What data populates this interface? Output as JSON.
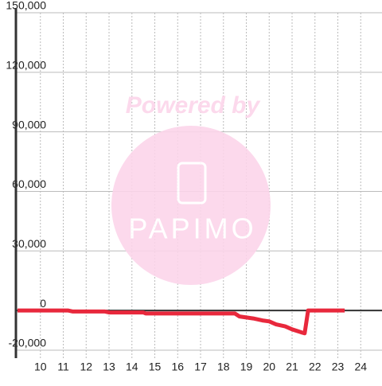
{
  "chart_data": {
    "type": "line",
    "watermark": {
      "title": "Powered by",
      "brand": "PAPIMO"
    },
    "x": [
      9,
      11.2,
      11.4,
      12.8,
      13,
      14.5,
      14.6,
      18.5,
      18.7,
      19.3,
      19.7,
      20,
      20.3,
      20.7,
      21,
      21.4,
      21.55,
      21.7,
      23.3
    ],
    "series": [
      {
        "color": "#e8283c",
        "values": [
          0,
          0,
          -500,
          -500,
          -1000,
          -1000,
          -1500,
          -1500,
          -3000,
          -4000,
          -5000,
          -5500,
          -7000,
          -8000,
          -9500,
          -11000,
          -11500,
          0,
          0
        ]
      }
    ],
    "xlim": [
      8.93,
      24.93
    ],
    "xticks": [
      10,
      11,
      12,
      13,
      14,
      15,
      16,
      17,
      18,
      19,
      20,
      21,
      22,
      23,
      24
    ],
    "ylim": [
      -20000,
      150000
    ],
    "yticks": [
      {
        "value": -20000,
        "label": "-20,000"
      },
      0,
      {
        "value": 30000,
        "label": "30,000"
      },
      {
        "value": 60000,
        "label": "60,000"
      },
      {
        "value": 90000,
        "label": "90,000"
      },
      {
        "value": 120000,
        "label": "120,000"
      },
      {
        "value": 150000,
        "label": "150,000"
      }
    ],
    "grid": true
  }
}
